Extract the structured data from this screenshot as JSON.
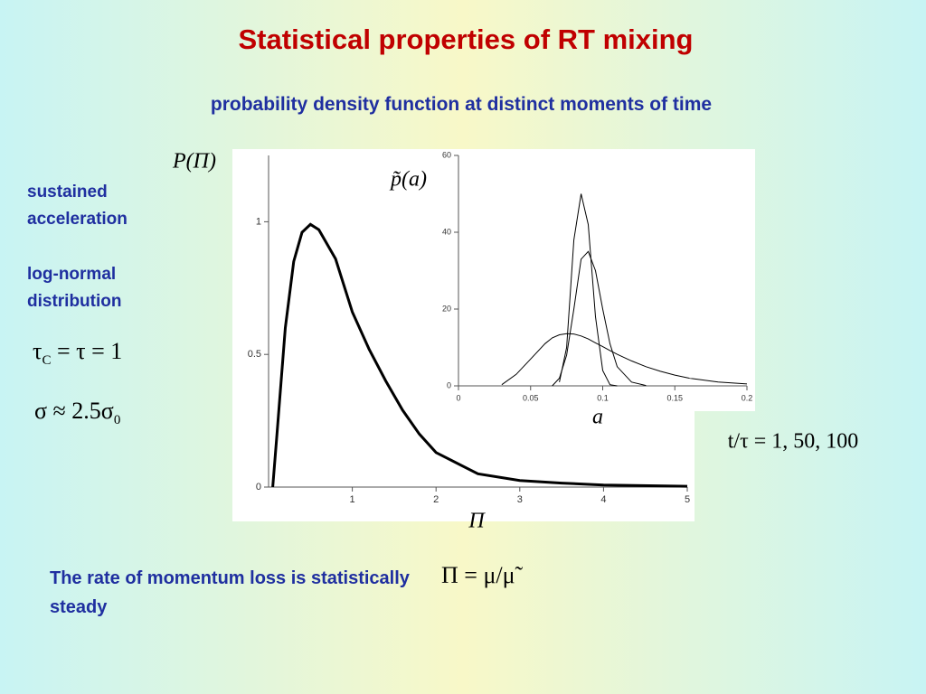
{
  "slide": {
    "title": "Statistical properties of RT mixing",
    "subtitle": "probability density function at distinct moments of time",
    "side_labels": [
      "sustained acceleration",
      "log-normal distribution"
    ],
    "tau_formula": [
      "τ",
      "C",
      " = τ = 1"
    ],
    "sigma_formula": [
      "σ ≈ 2.5σ",
      "0"
    ],
    "bottom_text": "The rate of momentum loss is statistically steady",
    "pi_formula": "Π = μ/μ̃"
  },
  "chart_data": [
    {
      "type": "line",
      "ylabel": "P(Π)",
      "xlabel": "Π",
      "color": "#000000",
      "x": [
        0.05,
        0.1,
        0.2,
        0.3,
        0.4,
        0.5,
        0.6,
        0.8,
        1.0,
        1.2,
        1.4,
        1.6,
        1.8,
        2.0,
        2.5,
        3.0,
        3.5,
        4.0,
        5.0
      ],
      "series": [
        {
          "color": "#000000",
          "values": [
            0.0,
            0.2,
            0.6,
            0.85,
            0.96,
            0.99,
            0.97,
            0.86,
            0.66,
            0.52,
            0.4,
            0.29,
            0.2,
            0.13,
            0.05,
            0.025,
            0.015,
            0.008,
            0.003
          ]
        }
      ],
      "xlim": [
        0,
        5
      ],
      "ylim": [
        0,
        1.25
      ],
      "xticks": [
        1,
        2,
        3,
        4,
        5
      ],
      "yticks": [
        0,
        0.5,
        1
      ],
      "grid": false
    },
    {
      "type": "line",
      "ylabel": "p̃(a)",
      "xlabel": "a",
      "annotation": "t/τ = 1, 50, 100",
      "x": [
        0.02,
        0.03,
        0.04,
        0.05,
        0.06,
        0.065,
        0.07,
        0.075,
        0.08,
        0.085,
        0.09,
        0.095,
        0.1,
        0.105,
        0.11,
        0.12,
        0.13,
        0.14,
        0.15,
        0.16,
        0.18,
        0.2
      ],
      "series": [
        {
          "color": "#000000",
          "values": [
            null,
            0.3,
            3,
            7,
            11,
            12.5,
            13.3,
            13.6,
            13.5,
            13,
            12.2,
            11.2,
            10.2,
            9.2,
            8.2,
            6.5,
            5,
            3.8,
            2.8,
            2,
            1,
            0.5
          ]
        },
        {
          "color": "#000000",
          "values": [
            null,
            null,
            null,
            null,
            null,
            0,
            2,
            8,
            20,
            33,
            35,
            30,
            20,
            11,
            5,
            1,
            0.1,
            null,
            null,
            null,
            null,
            null
          ]
        },
        {
          "color": "#000000",
          "values": [
            null,
            null,
            null,
            null,
            null,
            null,
            1,
            10,
            38,
            50,
            42,
            18,
            4,
            0.3,
            0,
            null,
            null,
            null,
            null,
            null,
            null,
            null
          ]
        }
      ],
      "xlim": [
        0,
        0.2
      ],
      "ylim": [
        0,
        60
      ],
      "xticks": [
        0,
        0.05,
        0.1,
        0.15,
        0.2
      ],
      "yticks": [
        0,
        20,
        40,
        60
      ],
      "grid": false
    }
  ]
}
